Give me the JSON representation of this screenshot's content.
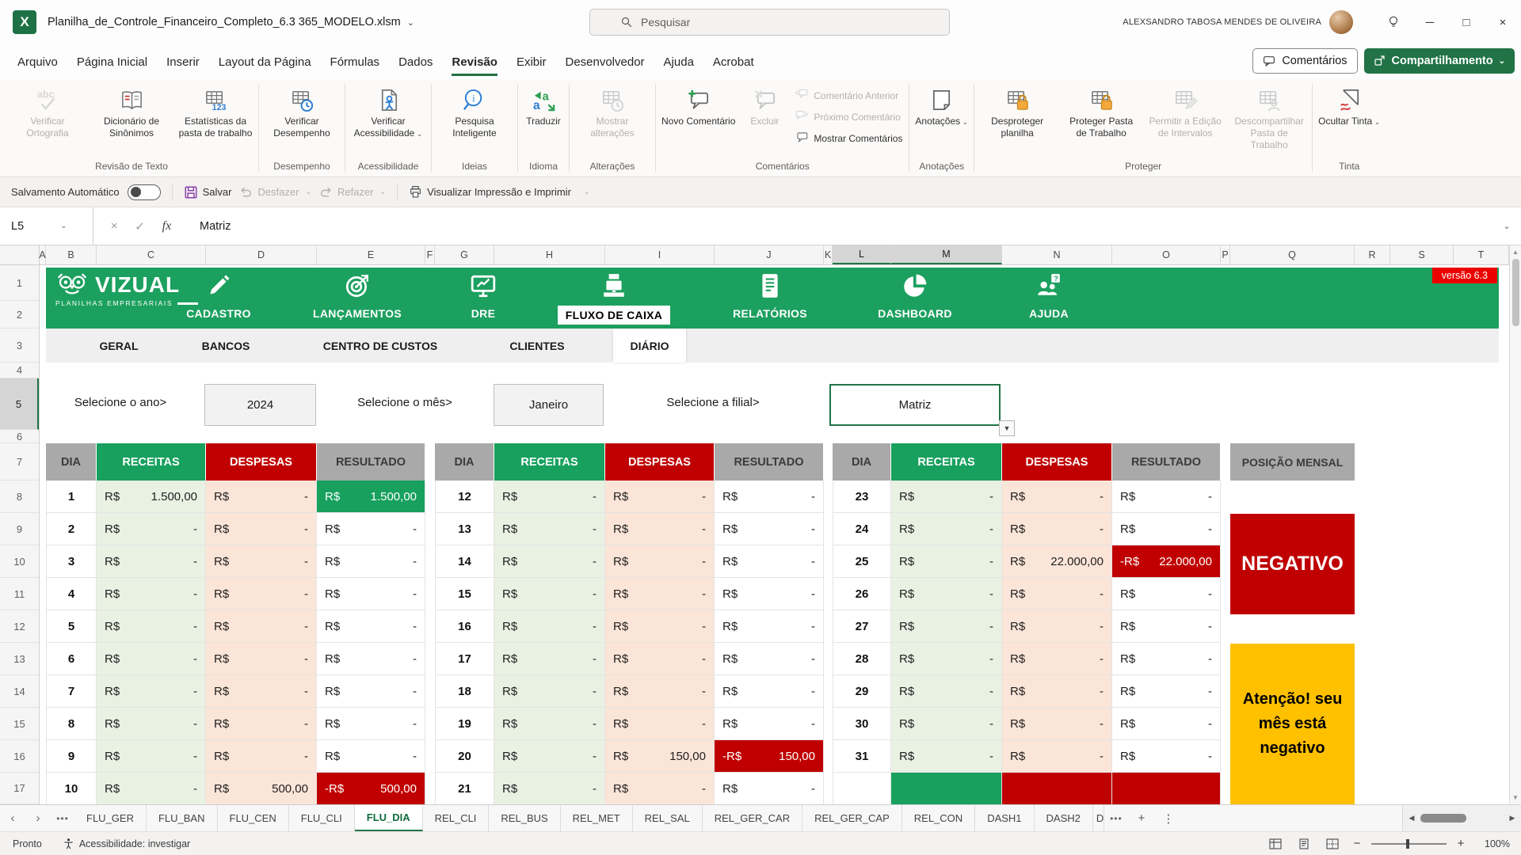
{
  "titlebar": {
    "title": "Planilha_de_Controle_Financeiro_Completo_6.3 365_MODELO.xlsm",
    "search_placeholder": "Pesquisar",
    "user_name": "ALEXSANDRO TABOSA MENDES DE OLIVEIRA"
  },
  "menubar": {
    "items": [
      "Arquivo",
      "Página Inicial",
      "Inserir",
      "Layout da Página",
      "Fórmulas",
      "Dados",
      "Revisão",
      "Exibir",
      "Desenvolvedor",
      "Ajuda",
      "Acrobat"
    ],
    "active": "Revisão",
    "comments_label": "Comentários",
    "share_label": "Compartilhamento"
  },
  "ribbon": {
    "groups": [
      {
        "name": "Revisão de Texto",
        "buttons": [
          {
            "label": "Verificar Ortografia",
            "icon": "spellcheck",
            "enabled": false
          },
          {
            "label": "Dicionário de Sinônimos",
            "icon": "book",
            "enabled": true
          },
          {
            "label": "Estatísticas da pasta de trabalho",
            "icon": "grid123",
            "enabled": true
          }
        ]
      },
      {
        "name": "Desempenho",
        "buttons": [
          {
            "label": "Verificar Desempenho",
            "icon": "gridclock",
            "enabled": true
          }
        ]
      },
      {
        "name": "Acessibilidade",
        "buttons": [
          {
            "label": "Verificar Acessibilidade",
            "icon": "docperson",
            "enabled": true,
            "chevron": true
          }
        ]
      },
      {
        "name": "Ideias",
        "buttons": [
          {
            "label": "Pesquisa Inteligente",
            "icon": "maginfo",
            "enabled": true
          }
        ]
      },
      {
        "name": "Idioma",
        "buttons": [
          {
            "label": "Traduzir",
            "icon": "translate",
            "enabled": true
          }
        ]
      },
      {
        "name": "Alterações",
        "buttons": [
          {
            "label": "Mostrar alterações",
            "icon": "gridhist",
            "enabled": false
          }
        ]
      },
      {
        "name": "Comentários",
        "buttons": [
          {
            "label": "Novo Comentário",
            "icon": "commentplus",
            "enabled": true
          },
          {
            "label": "Excluir",
            "icon": "commentx",
            "enabled": false
          }
        ],
        "stack": [
          {
            "label": "Comentário Anterior",
            "icon": "commentprev",
            "enabled": false
          },
          {
            "label": "Próximo Comentário",
            "icon": "commentnext",
            "enabled": false
          },
          {
            "label": "Mostrar Comentários",
            "icon": "commentshow",
            "enabled": true
          }
        ]
      },
      {
        "name": "Anotações",
        "buttons": [
          {
            "label": "Anotações",
            "icon": "note",
            "enabled": true,
            "chevron": true
          }
        ]
      },
      {
        "name": "Proteger",
        "buttons": [
          {
            "label": "Desproteger planilha",
            "icon": "gridlock",
            "enabled": true
          },
          {
            "label": "Proteger Pasta de Trabalho",
            "icon": "gridlock",
            "enabled": true
          },
          {
            "label": "Permitir a Edição de Intervalos",
            "icon": "gridpencil",
            "enabled": false
          },
          {
            "label": "Descompartilhar Pasta de Trabalho",
            "icon": "gridperson",
            "enabled": false
          }
        ]
      },
      {
        "name": "Tinta",
        "buttons": [
          {
            "label": "Ocultar Tinta",
            "icon": "ink",
            "enabled": true,
            "chevron": true
          }
        ]
      }
    ]
  },
  "qat": {
    "autosave": "Salvamento Automático",
    "save": "Salvar",
    "undo": "Desfazer",
    "redo": "Refazer",
    "print": "Visualizar Impressão e Imprimir"
  },
  "formula": {
    "name_box": "L5",
    "fx_label": "fx",
    "value": "Matriz"
  },
  "grid": {
    "columns": [
      "A",
      "B",
      "C",
      "D",
      "E",
      "F",
      "G",
      "H",
      "I",
      "J",
      "K",
      "L",
      "M",
      "N",
      "O",
      "P",
      "Q",
      "R",
      "S",
      "T"
    ],
    "selected_columns": [
      "L",
      "M"
    ],
    "rows": [
      "1",
      "2",
      "3",
      "4",
      "5",
      "6",
      "7",
      "8",
      "9",
      "10",
      "11",
      "12",
      "13",
      "14",
      "15",
      "16",
      "17"
    ],
    "selected_row": "5"
  },
  "banner": {
    "logo": "VIZUAL",
    "logo_sub": "PLANILHAS EMPRESARIAIS",
    "version": "versão 6.3",
    "tabs": [
      {
        "label": "CADASTRO",
        "icon": "pencil"
      },
      {
        "label": "LANÇAMENTOS",
        "icon": "target"
      },
      {
        "label": "DRE",
        "icon": "monitor"
      },
      {
        "label": "FLUXO DE CAIXA",
        "icon": "register",
        "active": true
      },
      {
        "label": "RELATÓRIOS",
        "icon": "docu"
      },
      {
        "label": "DASHBOARD",
        "icon": "pie"
      },
      {
        "label": "AJUDA",
        "icon": "help"
      }
    ]
  },
  "subtabs": {
    "items": [
      "GERAL",
      "BANCOS",
      "CENTRO DE CUSTOS",
      "CLIENTES",
      "DIÁRIO"
    ],
    "active": "DIÁRIO"
  },
  "filters": [
    {
      "label": "Selecione o ano>",
      "value": "2024"
    },
    {
      "label": "Selecione o mês>",
      "value": "Janeiro"
    },
    {
      "label": "Selecione a filial>",
      "value": "Matriz",
      "selected": true
    }
  ],
  "tables": {
    "headers": [
      "DIA",
      "RECEITAS",
      "DESPESAS",
      "RESULTADO"
    ],
    "currency": "R$",
    "neg_currency": "-R$",
    "t1": [
      {
        "dia": "1",
        "rec": "1.500,00",
        "desp": "-",
        "res": "1.500,00",
        "res_class": "pos"
      },
      {
        "dia": "2",
        "rec": "-",
        "desp": "-",
        "res": "-"
      },
      {
        "dia": "3",
        "rec": "-",
        "desp": "-",
        "res": "-"
      },
      {
        "dia": "4",
        "rec": "-",
        "desp": "-",
        "res": "-"
      },
      {
        "dia": "5",
        "rec": "-",
        "desp": "-",
        "res": "-"
      },
      {
        "dia": "6",
        "rec": "-",
        "desp": "-",
        "res": "-"
      },
      {
        "dia": "7",
        "rec": "-",
        "desp": "-",
        "res": "-"
      },
      {
        "dia": "8",
        "rec": "-",
        "desp": "-",
        "res": "-"
      },
      {
        "dia": "9",
        "rec": "-",
        "desp": "-",
        "res": "-"
      },
      {
        "dia": "10",
        "rec": "-",
        "desp": "500,00",
        "res": "500,00",
        "res_class": "neg"
      }
    ],
    "t2": [
      {
        "dia": "12",
        "rec": "-",
        "desp": "-",
        "res": "-"
      },
      {
        "dia": "13",
        "rec": "-",
        "desp": "-",
        "res": "-"
      },
      {
        "dia": "14",
        "rec": "-",
        "desp": "-",
        "res": "-"
      },
      {
        "dia": "15",
        "rec": "-",
        "desp": "-",
        "res": "-"
      },
      {
        "dia": "16",
        "rec": "-",
        "desp": "-",
        "res": "-"
      },
      {
        "dia": "17",
        "rec": "-",
        "desp": "-",
        "res": "-"
      },
      {
        "dia": "18",
        "rec": "-",
        "desp": "-",
        "res": "-"
      },
      {
        "dia": "19",
        "rec": "-",
        "desp": "-",
        "res": "-"
      },
      {
        "dia": "20",
        "rec": "-",
        "desp": "150,00",
        "res": "150,00",
        "res_class": "neg"
      },
      {
        "dia": "21",
        "rec": "-",
        "desp": "-",
        "res": "-"
      }
    ],
    "t3": [
      {
        "dia": "23",
        "rec": "-",
        "desp": "-",
        "res": "-"
      },
      {
        "dia": "24",
        "rec": "-",
        "desp": "-",
        "res": "-"
      },
      {
        "dia": "25",
        "rec": "-",
        "desp": "22.000,00",
        "res": "22.000,00",
        "res_class": "neg"
      },
      {
        "dia": "26",
        "rec": "-",
        "desp": "-",
        "res": "-"
      },
      {
        "dia": "27",
        "rec": "-",
        "desp": "-",
        "res": "-"
      },
      {
        "dia": "28",
        "rec": "-",
        "desp": "-",
        "res": "-"
      },
      {
        "dia": "29",
        "rec": "-",
        "desp": "-",
        "res": "-"
      },
      {
        "dia": "30",
        "rec": "-",
        "desp": "-",
        "res": "-"
      },
      {
        "dia": "31",
        "rec": "-",
        "desp": "-",
        "res": "-"
      },
      {
        "totals": true
      }
    ]
  },
  "posicao": {
    "header": "POSIÇÃO MENSAL",
    "status": "NEGATIVO",
    "warning": "Atenção! seu mês está negativo"
  },
  "sheetbar": {
    "tabs": [
      "FLU_GER",
      "FLU_BAN",
      "FLU_CEN",
      "FLU_CLI",
      "FLU_DIA",
      "REL_CLI",
      "REL_BUS",
      "REL_MET",
      "REL_SAL",
      "REL_GER_CAR",
      "REL_GER_CAP",
      "REL_CON",
      "DASH1",
      "DASH2"
    ],
    "active": "FLU_DIA"
  },
  "statusbar": {
    "mode": "Pronto",
    "accessibility": "Acessibilidade: investigar",
    "zoom": "100%"
  }
}
